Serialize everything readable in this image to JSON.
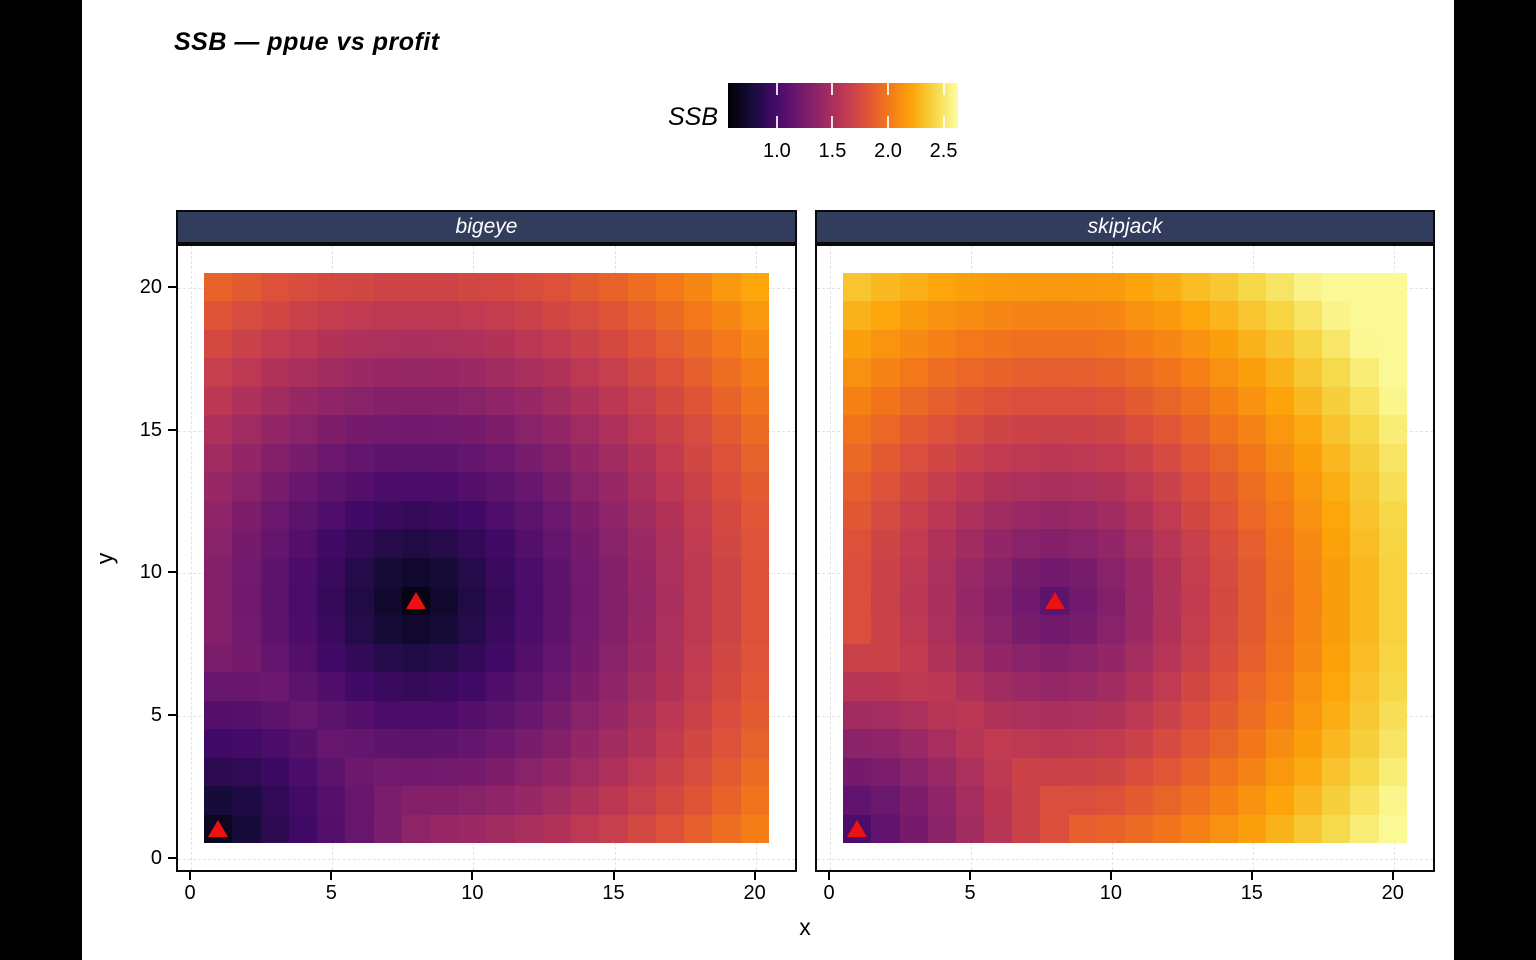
{
  "title": "SSB — ppue vs profit",
  "axes": {
    "x_label": "x",
    "y_label": "y",
    "x_ticks": [
      0,
      5,
      10,
      15,
      20
    ],
    "y_ticks": [
      0,
      5,
      10,
      15,
      20
    ]
  },
  "legend": {
    "title": "SSB",
    "ticks": [
      1.0,
      1.5,
      2.0,
      2.5
    ],
    "domain": [
      0.56,
      2.63
    ]
  },
  "colors": {
    "background": "#ffffff",
    "letterbox": "#000000",
    "strip_bg": "#323c5d",
    "strip_text": "#ffffff",
    "panel_border": "#0a0a0a",
    "grid_line": "#e3e3e3",
    "marker_color": "#ee1111",
    "inferno_stops": [
      [
        0.0,
        "#000004"
      ],
      [
        0.1,
        "#160b39"
      ],
      [
        0.2,
        "#420a68"
      ],
      [
        0.3,
        "#6a176e"
      ],
      [
        0.4,
        "#932667"
      ],
      [
        0.5,
        "#bc3754"
      ],
      [
        0.6,
        "#dd513a"
      ],
      [
        0.7,
        "#f37819"
      ],
      [
        0.8,
        "#fca50a"
      ],
      [
        0.9,
        "#f6d746"
      ],
      [
        1.0,
        "#fcffa4"
      ]
    ]
  },
  "chart_data": {
    "type": "heatmap",
    "fill_variable": "SSB",
    "colormap": "inferno",
    "x_range": [
      0.5,
      20.5
    ],
    "y_range": [
      0.5,
      20.5
    ],
    "x_values": [
      1,
      2,
      3,
      4,
      5,
      6,
      7,
      8,
      9,
      10,
      11,
      12,
      13,
      14,
      15,
      16,
      17,
      18,
      19,
      20
    ],
    "y_values": [
      1,
      2,
      3,
      4,
      5,
      6,
      7,
      8,
      9,
      10,
      11,
      12,
      13,
      14,
      15,
      16,
      17,
      18,
      19,
      20
    ],
    "marker": {
      "shape": "triangle-up",
      "color": "#ee1111"
    },
    "facets": [
      {
        "label": "bigeye",
        "marker_points": [
          {
            "x": 8,
            "y": 9
          },
          {
            "x": 1,
            "y": 1
          }
        ],
        "grid_rows_bottom_up": [
          [
            0.67,
            0.77,
            0.87,
            0.96,
            1.06,
            1.16,
            1.26,
            1.36,
            1.41,
            1.43,
            1.46,
            1.5,
            1.54,
            1.6,
            1.66,
            1.73,
            1.8,
            1.88,
            1.95,
            2.03
          ],
          [
            0.77,
            0.81,
            0.89,
            0.98,
            1.07,
            1.17,
            1.26,
            1.31,
            1.31,
            1.33,
            1.37,
            1.41,
            1.46,
            1.52,
            1.59,
            1.66,
            1.74,
            1.82,
            1.9,
            1.98
          ],
          [
            0.87,
            0.89,
            0.95,
            1.02,
            1.11,
            1.2,
            1.22,
            1.21,
            1.22,
            1.24,
            1.28,
            1.33,
            1.39,
            1.45,
            1.52,
            1.6,
            1.68,
            1.76,
            1.85,
            1.94
          ],
          [
            0.96,
            0.98,
            1.02,
            1.08,
            1.16,
            1.15,
            1.12,
            1.11,
            1.12,
            1.15,
            1.19,
            1.25,
            1.31,
            1.39,
            1.46,
            1.54,
            1.63,
            1.72,
            1.8,
            1.89
          ],
          [
            1.06,
            1.07,
            1.11,
            1.16,
            1.11,
            1.06,
            1.02,
            1.01,
            1.02,
            1.06,
            1.11,
            1.17,
            1.25,
            1.33,
            1.41,
            1.5,
            1.59,
            1.68,
            1.77,
            1.86
          ],
          [
            1.16,
            1.17,
            1.19,
            1.11,
            1.04,
            0.97,
            0.93,
            0.91,
            0.93,
            0.97,
            1.04,
            1.11,
            1.19,
            1.28,
            1.37,
            1.46,
            1.55,
            1.64,
            1.74,
            1.83
          ],
          [
            1.26,
            1.24,
            1.15,
            1.06,
            0.97,
            0.9,
            0.84,
            0.82,
            0.84,
            0.9,
            0.97,
            1.06,
            1.15,
            1.24,
            1.33,
            1.43,
            1.52,
            1.62,
            1.72,
            1.81
          ],
          [
            1.31,
            1.22,
            1.12,
            1.02,
            0.93,
            0.84,
            0.76,
            0.72,
            0.76,
            0.84,
            0.93,
            1.02,
            1.12,
            1.22,
            1.31,
            1.41,
            1.51,
            1.6,
            1.7,
            1.8
          ],
          [
            1.31,
            1.21,
            1.11,
            1.01,
            0.91,
            0.82,
            0.72,
            0.62,
            0.72,
            0.82,
            0.91,
            1.01,
            1.11,
            1.21,
            1.31,
            1.4,
            1.5,
            1.6,
            1.7,
            1.8
          ],
          [
            1.31,
            1.22,
            1.12,
            1.02,
            0.93,
            0.84,
            0.76,
            0.72,
            0.76,
            0.84,
            0.93,
            1.02,
            1.12,
            1.22,
            1.31,
            1.41,
            1.51,
            1.6,
            1.7,
            1.8
          ],
          [
            1.33,
            1.24,
            1.15,
            1.06,
            0.97,
            0.9,
            0.84,
            0.82,
            0.84,
            0.9,
            0.97,
            1.06,
            1.15,
            1.24,
            1.33,
            1.43,
            1.52,
            1.62,
            1.72,
            1.81
          ],
          [
            1.37,
            1.28,
            1.19,
            1.11,
            1.04,
            0.97,
            0.93,
            0.91,
            0.93,
            0.97,
            1.04,
            1.11,
            1.19,
            1.28,
            1.37,
            1.46,
            1.55,
            1.64,
            1.74,
            1.83
          ],
          [
            1.41,
            1.33,
            1.25,
            1.17,
            1.11,
            1.06,
            1.02,
            1.01,
            1.02,
            1.06,
            1.11,
            1.17,
            1.25,
            1.33,
            1.41,
            1.5,
            1.59,
            1.68,
            1.77,
            1.86
          ],
          [
            1.46,
            1.39,
            1.31,
            1.25,
            1.19,
            1.15,
            1.12,
            1.11,
            1.12,
            1.15,
            1.19,
            1.25,
            1.31,
            1.39,
            1.46,
            1.54,
            1.63,
            1.72,
            1.8,
            1.89
          ],
          [
            1.52,
            1.45,
            1.39,
            1.33,
            1.28,
            1.24,
            1.22,
            1.21,
            1.22,
            1.24,
            1.28,
            1.33,
            1.39,
            1.45,
            1.52,
            1.6,
            1.68,
            1.76,
            1.85,
            1.94
          ],
          [
            1.59,
            1.52,
            1.46,
            1.41,
            1.37,
            1.33,
            1.31,
            1.31,
            1.31,
            1.33,
            1.37,
            1.41,
            1.46,
            1.52,
            1.59,
            1.66,
            1.74,
            1.82,
            1.9,
            1.98
          ],
          [
            1.66,
            1.6,
            1.54,
            1.5,
            1.46,
            1.43,
            1.41,
            1.4,
            1.41,
            1.43,
            1.46,
            1.5,
            1.54,
            1.6,
            1.66,
            1.73,
            1.8,
            1.88,
            1.95,
            2.03
          ],
          [
            1.74,
            1.68,
            1.63,
            1.59,
            1.55,
            1.52,
            1.51,
            1.5,
            1.51,
            1.52,
            1.55,
            1.59,
            1.63,
            1.68,
            1.74,
            1.8,
            1.87,
            1.94,
            2.01,
            2.09
          ],
          [
            1.82,
            1.76,
            1.72,
            1.68,
            1.64,
            1.62,
            1.6,
            1.6,
            1.6,
            1.62,
            1.64,
            1.68,
            1.72,
            1.76,
            1.82,
            1.88,
            1.94,
            2.01,
            2.08,
            2.15
          ],
          [
            1.9,
            1.85,
            1.8,
            1.77,
            1.74,
            1.72,
            1.7,
            1.7,
            1.7,
            1.72,
            1.74,
            1.77,
            1.8,
            1.85,
            1.9,
            1.95,
            2.01,
            2.08,
            2.15,
            2.22
          ]
        ]
      },
      {
        "label": "skipjack",
        "marker_points": [
          {
            "x": 8,
            "y": 9
          },
          {
            "x": 1,
            "y": 1
          }
        ],
        "grid_rows_bottom_up": [
          [
            1.02,
            1.13,
            1.24,
            1.35,
            1.46,
            1.57,
            1.68,
            1.79,
            1.88,
            1.9,
            1.94,
            1.99,
            2.05,
            2.12,
            2.19,
            2.27,
            2.36,
            2.44,
            2.53,
            2.6
          ],
          [
            1.13,
            1.18,
            1.27,
            1.37,
            1.47,
            1.58,
            1.69,
            1.78,
            1.78,
            1.8,
            1.86,
            1.91,
            1.97,
            2.05,
            2.13,
            2.21,
            2.3,
            2.39,
            2.48,
            2.58
          ],
          [
            1.24,
            1.27,
            1.33,
            1.42,
            1.51,
            1.61,
            1.69,
            1.68,
            1.69,
            1.71,
            1.77,
            1.83,
            1.9,
            1.98,
            2.06,
            2.15,
            2.24,
            2.34,
            2.43,
            2.53
          ],
          [
            1.35,
            1.37,
            1.42,
            1.49,
            1.57,
            1.63,
            1.6,
            1.59,
            1.6,
            1.63,
            1.68,
            1.75,
            1.83,
            1.91,
            2.0,
            2.1,
            2.19,
            2.29,
            2.39,
            2.49
          ],
          [
            1.46,
            1.47,
            1.51,
            1.57,
            1.59,
            1.54,
            1.51,
            1.5,
            1.51,
            1.54,
            1.6,
            1.68,
            1.77,
            1.86,
            1.95,
            2.05,
            2.15,
            2.25,
            2.36,
            2.46
          ],
          [
            1.57,
            1.58,
            1.61,
            1.59,
            1.52,
            1.46,
            1.42,
            1.4,
            1.42,
            1.46,
            1.54,
            1.62,
            1.72,
            1.81,
            1.92,
            2.01,
            2.12,
            2.22,
            2.33,
            2.43
          ],
          [
            1.68,
            1.69,
            1.63,
            1.54,
            1.46,
            1.39,
            1.33,
            1.31,
            1.33,
            1.39,
            1.47,
            1.57,
            1.67,
            1.77,
            1.88,
            1.99,
            2.09,
            2.2,
            2.31,
            2.41
          ],
          [
            1.78,
            1.69,
            1.6,
            1.51,
            1.42,
            1.33,
            1.25,
            1.21,
            1.25,
            1.33,
            1.43,
            1.54,
            1.64,
            1.75,
            1.86,
            1.97,
            2.08,
            2.18,
            2.29,
            2.4
          ],
          [
            1.78,
            1.68,
            1.59,
            1.5,
            1.4,
            1.31,
            1.21,
            1.12,
            1.21,
            1.31,
            1.42,
            1.53,
            1.63,
            1.74,
            1.85,
            1.96,
            2.07,
            2.18,
            2.29,
            2.4
          ],
          [
            1.78,
            1.69,
            1.6,
            1.51,
            1.42,
            1.33,
            1.25,
            1.21,
            1.25,
            1.33,
            1.43,
            1.54,
            1.64,
            1.75,
            1.86,
            1.97,
            2.08,
            2.18,
            2.29,
            2.4
          ],
          [
            1.8,
            1.71,
            1.63,
            1.54,
            1.46,
            1.39,
            1.33,
            1.31,
            1.33,
            1.39,
            1.47,
            1.57,
            1.67,
            1.77,
            1.88,
            1.99,
            2.09,
            2.2,
            2.31,
            2.41
          ],
          [
            1.84,
            1.75,
            1.67,
            1.59,
            1.52,
            1.46,
            1.42,
            1.4,
            1.42,
            1.46,
            1.54,
            1.62,
            1.72,
            1.81,
            1.92,
            2.01,
            2.12,
            2.22,
            2.33,
            2.43
          ],
          [
            1.88,
            1.8,
            1.72,
            1.65,
            1.59,
            1.54,
            1.51,
            1.5,
            1.51,
            1.54,
            1.6,
            1.68,
            1.77,
            1.86,
            1.95,
            2.05,
            2.15,
            2.25,
            2.36,
            2.46
          ],
          [
            1.93,
            1.85,
            1.78,
            1.72,
            1.67,
            1.63,
            1.6,
            1.59,
            1.6,
            1.63,
            1.68,
            1.75,
            1.83,
            1.91,
            2.0,
            2.1,
            2.19,
            2.29,
            2.39,
            2.49
          ],
          [
            1.99,
            1.92,
            1.85,
            1.8,
            1.75,
            1.71,
            1.69,
            1.68,
            1.69,
            1.71,
            1.77,
            1.83,
            1.9,
            1.98,
            2.06,
            2.15,
            2.24,
            2.34,
            2.43,
            2.53
          ],
          [
            2.05,
            1.99,
            1.93,
            1.88,
            1.84,
            1.8,
            1.78,
            1.78,
            1.78,
            1.8,
            1.86,
            1.91,
            1.97,
            2.05,
            2.13,
            2.21,
            2.3,
            2.39,
            2.48,
            2.58
          ],
          [
            2.12,
            2.06,
            2.01,
            1.96,
            1.92,
            1.9,
            1.88,
            1.87,
            1.88,
            1.9,
            1.94,
            1.99,
            2.05,
            2.12,
            2.19,
            2.27,
            2.36,
            2.44,
            2.53,
            2.6
          ],
          [
            2.19,
            2.14,
            2.09,
            2.05,
            2.01,
            1.99,
            1.97,
            1.97,
            1.97,
            1.99,
            2.03,
            2.08,
            2.13,
            2.19,
            2.27,
            2.34,
            2.42,
            2.5,
            2.59,
            2.6
          ],
          [
            2.27,
            2.22,
            2.17,
            2.13,
            2.1,
            2.08,
            2.06,
            2.06,
            2.06,
            2.08,
            2.12,
            2.16,
            2.22,
            2.28,
            2.35,
            2.41,
            2.49,
            2.57,
            2.6,
            2.6
          ],
          [
            2.35,
            2.3,
            2.26,
            2.22,
            2.19,
            2.17,
            2.16,
            2.15,
            2.16,
            2.17,
            2.21,
            2.25,
            2.31,
            2.36,
            2.43,
            2.49,
            2.57,
            2.6,
            2.6,
            2.6
          ]
        ]
      }
    ]
  }
}
